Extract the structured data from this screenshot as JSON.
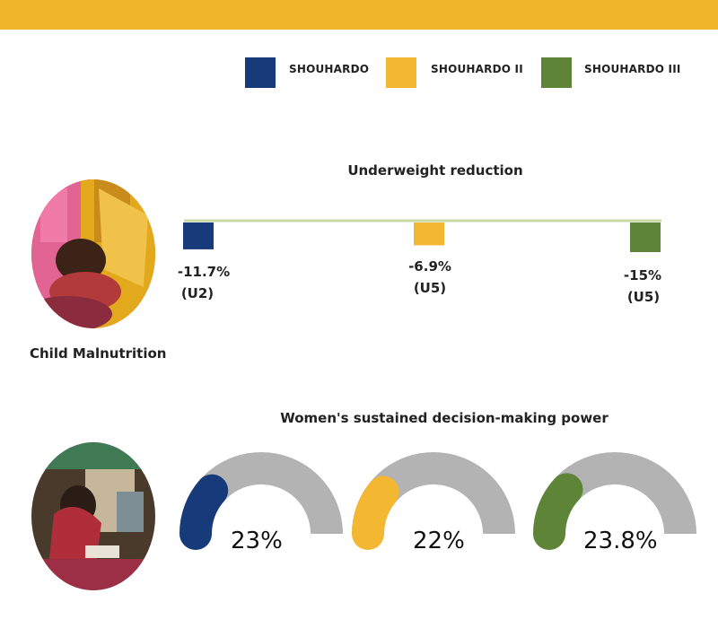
{
  "colors": {
    "banner": "#f1b52a",
    "shouhardo": "#173a7a",
    "shouhardo_ii": "#f4b731",
    "shouhardo_iii": "#5e8437",
    "baseline": "#c8d8a8",
    "gauge_track": "#b3b3b3"
  },
  "legend": [
    {
      "label": "SHOUHARDO",
      "color": "#173a7a"
    },
    {
      "label": "SHOUHARDO II",
      "color": "#f4b731"
    },
    {
      "label": "SHOUHARDO III",
      "color": "#5e8437"
    }
  ],
  "photos": {
    "child": {
      "caption": "Child Malnutrition"
    },
    "women": {
      "caption": ""
    }
  },
  "chart_data": [
    {
      "type": "bar",
      "title": "Underweight reduction",
      "categories": [
        "SHOUHARDO",
        "SHOUHARDO II",
        "SHOUHARDO III"
      ],
      "values": [
        -11.7,
        -6.9,
        -15
      ],
      "value_labels": [
        "-11.7%",
        "-6.9%",
        "-15%"
      ],
      "group_labels": [
        "(U2)",
        "(U5)",
        "(U5)"
      ],
      "colors": [
        "#173a7a",
        "#f4b731",
        "#5e8437"
      ]
    },
    {
      "type": "gauge",
      "title": "Women's sustained decision-making power",
      "categories": [
        "SHOUHARDO",
        "SHOUHARDO II",
        "SHOUHARDO III"
      ],
      "values": [
        23,
        22,
        23.8
      ],
      "value_labels": [
        "23%",
        "22%",
        "23.8%"
      ],
      "colors": [
        "#173a7a",
        "#f4b731",
        "#5e8437"
      ]
    }
  ]
}
